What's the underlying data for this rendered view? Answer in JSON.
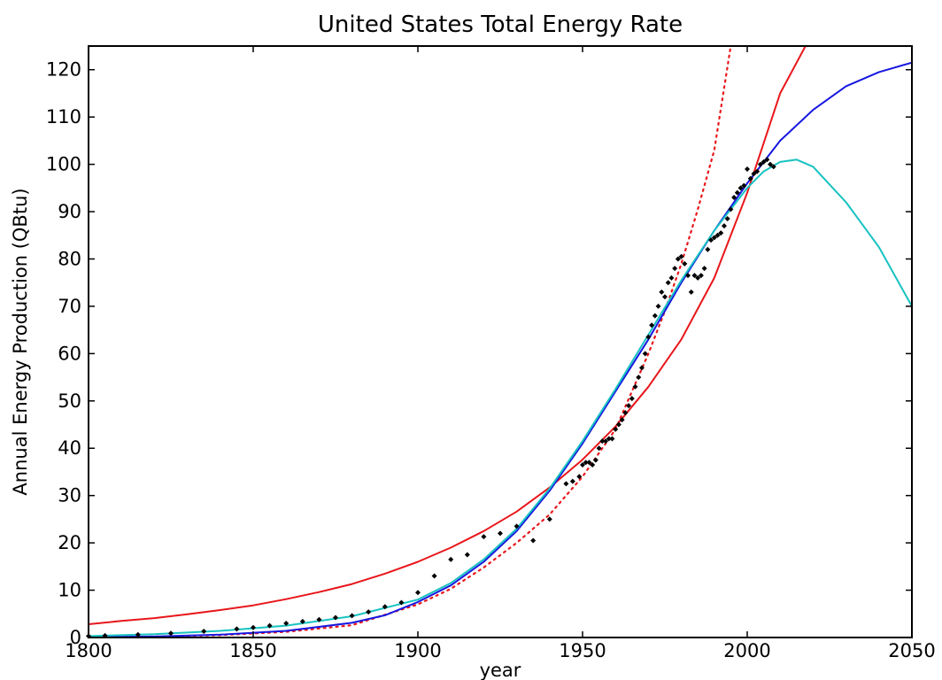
{
  "chart_data": {
    "type": "line",
    "title": "United States Total Energy Rate",
    "xlabel": "year",
    "ylabel": "Annual Energy Production (QBtu)",
    "xlim": [
      1800,
      2050
    ],
    "ylim": [
      0,
      125
    ],
    "xticks": [
      1800,
      1850,
      1900,
      1950,
      2000,
      2050
    ],
    "yticks": [
      0,
      10,
      20,
      30,
      40,
      50,
      60,
      70,
      80,
      90,
      100,
      110,
      120
    ],
    "grid": false,
    "legend": "none",
    "series": [
      {
        "kind": "scatter",
        "color": "#000000",
        "x": [
          1800,
          1805,
          1815,
          1825,
          1835,
          1845,
          1850,
          1855,
          1860,
          1865,
          1870,
          1875,
          1880,
          1885,
          1890,
          1895,
          1900,
          1905,
          1910,
          1915,
          1920,
          1925,
          1930,
          1935,
          1940,
          1945,
          1947,
          1949,
          1950,
          1951,
          1952,
          1953,
          1954,
          1955,
          1956,
          1957,
          1958,
          1959,
          1960,
          1961,
          1962,
          1963,
          1964,
          1965,
          1966,
          1967,
          1968,
          1969,
          1970,
          1971,
          1972,
          1973,
          1974,
          1975,
          1976,
          1977,
          1978,
          1979,
          1980,
          1981,
          1982,
          1983,
          1984,
          1985,
          1986,
          1987,
          1988,
          1989,
          1990,
          1991,
          1992,
          1993,
          1994,
          1995,
          1996,
          1997,
          1998,
          1999,
          2000,
          2001,
          2002,
          2003,
          2004,
          2005,
          2006,
          2007,
          2008
        ],
        "y": [
          0.3,
          0.4,
          0.6,
          0.9,
          1.3,
          1.8,
          2.1,
          2.5,
          3.0,
          3.4,
          3.8,
          4.2,
          4.6,
          5.4,
          6.5,
          7.4,
          9.5,
          13.0,
          16.5,
          17.5,
          21.3,
          22.0,
          23.5,
          20.5,
          25.0,
          32.5,
          33.0,
          34.0,
          36.5,
          37.0,
          37.0,
          36.5,
          37.5,
          40.0,
          41.5,
          41.5,
          42.0,
          42.0,
          44.0,
          45.0,
          46.0,
          47.5,
          49.0,
          50.5,
          53.0,
          55.0,
          57.0,
          60.0,
          63.5,
          66.0,
          68.0,
          70.0,
          73.0,
          72.0,
          75.0,
          76.0,
          78.0,
          80.0,
          80.5,
          79.0,
          76.5,
          73.0,
          76.5,
          76.0,
          76.5,
          78.0,
          82.0,
          84.0,
          84.5,
          85.0,
          85.5,
          87.0,
          88.5,
          90.5,
          93.0,
          94.0,
          95.0,
          95.5,
          99.0,
          97.0,
          98.0,
          98.5,
          100.0,
          100.5,
          101.0,
          100.0,
          99.5
        ]
      },
      {
        "kind": "line",
        "style": "solid",
        "color": "#e8161b",
        "x": [
          1800,
          1810,
          1820,
          1830,
          1840,
          1850,
          1860,
          1870,
          1880,
          1890,
          1900,
          1910,
          1920,
          1930,
          1940,
          1950,
          1960,
          1970,
          1980,
          1990,
          2000,
          2010,
          2020
        ],
        "y": [
          2.8,
          3.5,
          4.1,
          4.9,
          5.8,
          6.8,
          8.1,
          9.6,
          11.3,
          13.5,
          16.0,
          19.0,
          22.5,
          26.6,
          31.7,
          37.6,
          44.6,
          53.0,
          63.0,
          76.0,
          94.0,
          115.0,
          128.0
        ]
      },
      {
        "kind": "line",
        "style": "dotted",
        "color": "#e8161b",
        "x": [
          1800,
          1820,
          1840,
          1860,
          1880,
          1900,
          1910,
          1920,
          1930,
          1940,
          1950,
          1960,
          1965,
          1970,
          1975,
          1980,
          1985,
          1990,
          1995
        ],
        "y": [
          0.0,
          0.2,
          0.5,
          1.2,
          2.6,
          7.0,
          10.3,
          14.8,
          20.0,
          26.0,
          34.0,
          44.0,
          52.0,
          60.0,
          69.0,
          79.0,
          90.5,
          103.0,
          125.0
        ]
      },
      {
        "kind": "line",
        "style": "solid",
        "color": "#1717e0",
        "x": [
          1800,
          1820,
          1840,
          1860,
          1880,
          1890,
          1900,
          1910,
          1920,
          1930,
          1940,
          1950,
          1960,
          1970,
          1980,
          1990,
          2000,
          2010,
          2020,
          2030,
          2040,
          2050
        ],
        "y": [
          0.1,
          0.2,
          0.6,
          1.4,
          3.1,
          4.7,
          7.5,
          11.0,
          16.0,
          22.5,
          31.0,
          41.0,
          52.0,
          63.0,
          75.0,
          86.0,
          96.0,
          105.0,
          111.5,
          116.5,
          119.5,
          121.5
        ]
      },
      {
        "kind": "line",
        "style": "solid",
        "color": "#18c2c2",
        "x": [
          1800,
          1820,
          1840,
          1860,
          1880,
          1900,
          1910,
          1920,
          1930,
          1940,
          1950,
          1960,
          1970,
          1980,
          1990,
          2000,
          2005,
          2010,
          2015,
          2020,
          2030,
          2040,
          2050
        ],
        "y": [
          0.3,
          0.7,
          1.4,
          2.5,
          4.5,
          8.0,
          11.5,
          16.5,
          23.0,
          31.5,
          41.5,
          52.5,
          64.0,
          75.5,
          86.0,
          95.0,
          98.5,
          100.5,
          101.0,
          99.5,
          92.0,
          82.5,
          70.0
        ]
      }
    ]
  }
}
